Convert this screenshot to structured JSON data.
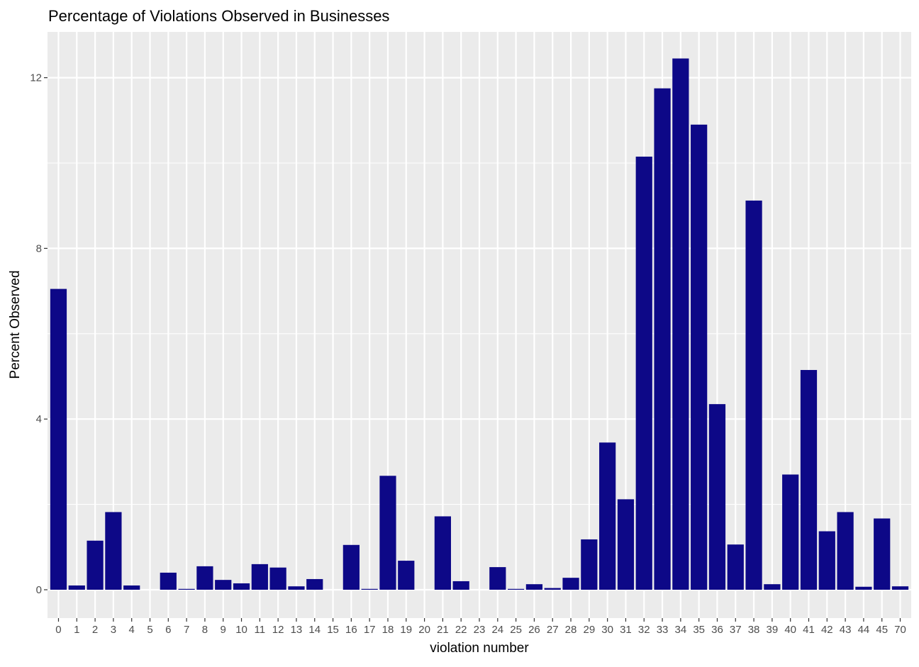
{
  "chart_data": {
    "type": "bar",
    "title": "Percentage of Violations Observed in Businesses",
    "xlabel": "violation number",
    "ylabel": "Percent Observed",
    "ylim": [
      0,
      13.2
    ],
    "y_ticks": [
      0,
      4,
      8,
      12
    ],
    "grid": true,
    "bar_color": "#0d0887",
    "panel_color": "#ebebeb",
    "categories": [
      "0",
      "1",
      "2",
      "3",
      "4",
      "5",
      "6",
      "7",
      "8",
      "9",
      "10",
      "11",
      "12",
      "13",
      "14",
      "15",
      "16",
      "17",
      "18",
      "19",
      "20",
      "21",
      "22",
      "23",
      "24",
      "25",
      "26",
      "27",
      "28",
      "29",
      "30",
      "31",
      "32",
      "33",
      "34",
      "35",
      "36",
      "37",
      "38",
      "39",
      "40",
      "41",
      "42",
      "43",
      "44",
      "45",
      "70"
    ],
    "values": [
      7.05,
      0.1,
      1.15,
      1.82,
      0.1,
      0,
      0.4,
      0.02,
      0.55,
      0.23,
      0.15,
      0.6,
      0.52,
      0.08,
      0.25,
      0,
      1.05,
      0.02,
      2.67,
      0.68,
      0,
      1.72,
      0.2,
      0,
      0.53,
      0.02,
      0.13,
      0.04,
      0.28,
      1.18,
      3.45,
      2.12,
      10.15,
      11.75,
      12.45,
      10.9,
      4.35,
      1.06,
      9.12,
      0.13,
      2.7,
      5.15,
      1.37,
      1.82,
      0.07,
      1.67,
      0.08
    ]
  }
}
